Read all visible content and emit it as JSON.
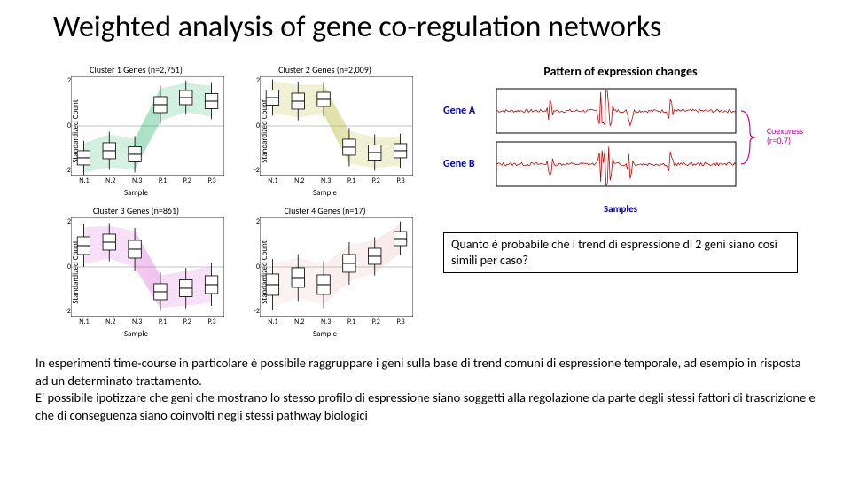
{
  "title": "Weighted analysis of gene co-regulation networks",
  "clusters": {
    "ylabel": "Standardized Count",
    "xlabel": "Sample",
    "xticks": [
      "N.1",
      "N.2",
      "N.3",
      "P.1",
      "P.2",
      "P.3"
    ],
    "yticks": [
      "2",
      "0",
      "-2"
    ],
    "ylim": [
      -2.8,
      2.8
    ],
    "box_width": 0.5,
    "box_fill": "#ffffff",
    "box_stroke": "#000000",
    "background_color": "#ffffff",
    "panels": [
      {
        "title": "Cluster 1 Genes (n=2,751)",
        "color": "#2eb872",
        "trend": [
          -1.8,
          -1.4,
          -1.6,
          1.2,
          1.6,
          1.4
        ],
        "spread": [
          0.8,
          0.9,
          0.85,
          0.9,
          0.8,
          0.85
        ]
      },
      {
        "title": "Cluster 2 Genes (n=2,009)",
        "color": "#b5b82e",
        "trend": [
          1.6,
          1.4,
          1.5,
          -1.2,
          -1.5,
          -1.4
        ],
        "spread": [
          0.85,
          0.9,
          0.8,
          0.9,
          0.85,
          0.8
        ]
      },
      {
        "title": "Cluster 3 Genes (n=861)",
        "color": "#d655d6",
        "trend": [
          1.2,
          1.4,
          1.0,
          -1.4,
          -1.2,
          -1.0
        ],
        "spread": [
          1.0,
          0.9,
          1.0,
          0.9,
          0.95,
          1.0
        ]
      },
      {
        "title": "Cluster 4 Genes (n=17)",
        "color": "#e8b0b0",
        "trend": [
          -1.0,
          -0.6,
          -1.0,
          0.2,
          0.6,
          1.6
        ],
        "spread": [
          1.2,
          1.1,
          1.1,
          1.0,
          0.9,
          0.8
        ]
      }
    ]
  },
  "expression": {
    "title": "Pattern of expression changes",
    "gene_a": "Gene A",
    "gene_b": "Gene B",
    "coexpr": "Coexpress\n(r=0.7)",
    "samples": "Samples",
    "line_color": "#cc0000",
    "box_stroke": "#000000",
    "brace_color": "#cc0099",
    "n_points": 180,
    "amp_base": 0.3,
    "spike_positions": [
      40,
      78,
      82,
      85,
      100,
      130
    ],
    "spike_amps": [
      1.2,
      1.8,
      2.0,
      1.5,
      1.3,
      1.1
    ]
  },
  "question": "Quanto è probabile che i trend di espressione di 2 geni siano così simili per caso?",
  "body": "In esperimenti time-course in particolare è possibile raggruppare i geni sulla base di trend comuni di espressione temporale, ad esempio in risposta ad un determinato trattamento.\nE' possibile ipotizzare che geni che mostrano lo stesso profilo di espressione siano soggetti alla regolazione da parte degli stessi fattori di trascrizione e che di conseguenza siano coinvolti negli stessi pathway biologici",
  "colors": {
    "text": "#000000",
    "background": "#ffffff"
  },
  "fonts": {
    "title_size": 34,
    "body_size": 14.5,
    "cluster_title_size": 10,
    "axis_label_size": 9,
    "tick_size": 8
  }
}
